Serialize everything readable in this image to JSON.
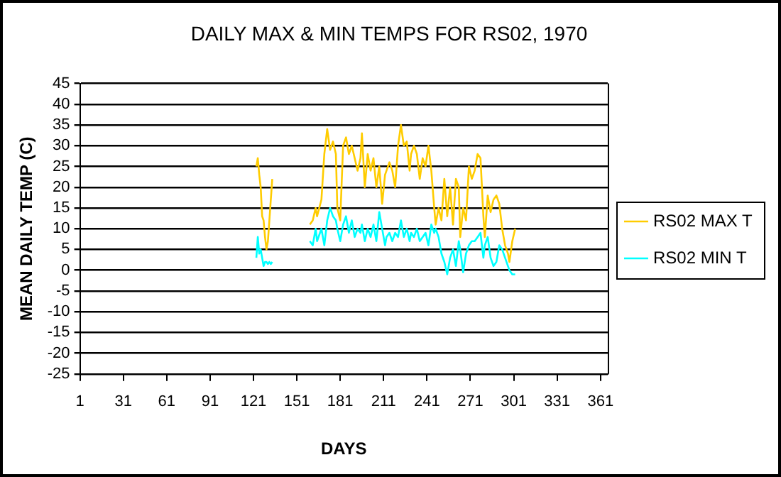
{
  "chart_data": {
    "type": "line",
    "title": "DAILY MAX & MIN TEMPS FOR RS02, 1970",
    "xlabel": "DAYS",
    "ylabel": "MEAN DAILY TEMP (C)",
    "x": [
      123,
      124,
      125,
      126,
      127,
      128,
      129,
      130,
      131,
      132,
      133,
      134,
      150,
      160,
      162,
      164,
      165,
      168,
      170,
      172,
      174,
      176,
      178,
      179,
      181,
      183,
      185,
      187,
      189,
      191,
      193,
      195,
      196,
      198,
      200,
      202,
      204,
      206,
      208,
      210,
      212,
      213,
      215,
      217,
      219,
      221,
      223,
      225,
      227,
      229,
      230,
      232,
      234,
      236,
      238,
      240,
      242,
      244,
      246,
      247,
      249,
      251,
      253,
      255,
      257,
      259,
      261,
      263,
      264,
      266,
      268,
      270,
      272,
      274,
      276,
      278,
      280,
      281,
      283,
      285,
      287,
      289,
      291,
      293,
      295,
      297,
      298,
      300,
      302
    ],
    "series": [
      {
        "name": "RS02 MAX T",
        "color": "#ffcc00",
        "values": [
          25,
          27,
          23,
          20,
          13,
          12,
          8,
          5,
          7,
          12,
          17,
          22,
          null,
          11,
          12,
          15,
          13,
          17,
          28,
          34,
          29,
          31,
          28,
          15,
          12,
          30,
          32,
          28,
          30,
          27,
          24,
          27,
          33,
          20,
          28,
          24,
          27,
          20,
          25,
          16,
          23,
          24,
          26,
          24,
          20,
          30,
          35,
          30,
          31,
          24,
          28,
          30,
          28,
          22,
          27,
          25,
          30,
          24,
          15,
          11,
          15,
          12,
          22,
          13,
          20,
          11,
          22,
          20,
          8,
          15,
          12,
          25,
          22,
          24,
          28,
          27,
          13,
          8,
          18,
          14,
          17,
          18,
          16,
          10,
          6,
          4,
          2,
          7,
          10
        ]
      },
      {
        "name": "RS02 MIN T",
        "color": "#00ffff",
        "values": [
          3,
          8,
          4,
          5,
          3,
          1,
          2,
          2,
          1.5,
          2,
          1.5,
          2,
          null,
          7,
          6,
          10,
          7,
          10,
          6,
          12,
          15,
          13,
          12,
          10,
          7,
          11,
          13,
          9,
          12,
          8,
          10,
          9,
          11,
          7,
          10,
          8,
          11,
          7,
          14,
          10,
          6,
          8,
          9,
          7,
          9,
          8,
          12,
          8,
          10,
          7,
          9,
          8,
          10,
          7,
          8,
          9,
          6,
          11,
          9,
          10,
          8,
          4,
          2,
          -1,
          3,
          5,
          1,
          7,
          5,
          -0.5,
          4,
          6,
          7,
          7,
          8,
          9,
          3,
          6,
          8,
          3,
          1,
          2,
          6,
          5,
          3,
          1,
          0,
          -1,
          -1
        ]
      }
    ],
    "xlim": [
      1,
      366
    ],
    "xticks": [
      1,
      31,
      61,
      91,
      121,
      151,
      181,
      211,
      241,
      271,
      301,
      331,
      361
    ],
    "ylim": [
      -25,
      45
    ],
    "yticks": [
      -25,
      -20,
      -15,
      -10,
      -5,
      0,
      5,
      10,
      15,
      20,
      25,
      30,
      35,
      40,
      45
    ],
    "grid": "y",
    "legend": "right",
    "marker": "none",
    "line_style": "solid"
  }
}
